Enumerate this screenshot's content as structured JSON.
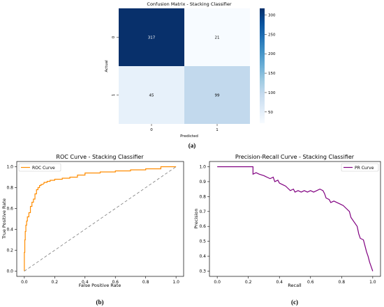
{
  "colors": {
    "roc_line": "#ff8c00",
    "pr_line": "#800080",
    "diagonal": "#7a7a7a",
    "axis": "#000000",
    "text": "#000000"
  },
  "chart_data": [
    {
      "type": "heatmap",
      "panel_label": "(a)",
      "title": "Confusion Matrix - Stacking Classifier",
      "xlabel": "Predicted",
      "ylabel": "Actual",
      "x_categories": [
        "0",
        "1"
      ],
      "y_categories": [
        "0",
        "1"
      ],
      "values": [
        [
          317,
          21
        ],
        [
          45,
          99
        ]
      ],
      "colormap": "Blues",
      "colorbar": {
        "ticks": [
          50,
          100,
          150,
          200,
          250,
          300
        ],
        "range": [
          21,
          317
        ]
      }
    },
    {
      "type": "line",
      "panel_label": "(b)",
      "title": "ROC Curve - Stacking Classifier",
      "xlabel": "False Positive Rate",
      "ylabel": "True Positive Rate",
      "xlim": [
        -0.05,
        1.05
      ],
      "ylim": [
        -0.05,
        1.05
      ],
      "xticks": [
        "0.0",
        "0.2",
        "0.4",
        "0.6",
        "0.8",
        "1.0"
      ],
      "yticks": [
        "0.0",
        "0.2",
        "0.4",
        "0.6",
        "0.8",
        "1.0"
      ],
      "legend": "top-left",
      "grid": false,
      "series": [
        {
          "name": "ROC Curve",
          "x": [
            0,
            0,
            0.003,
            0.003,
            0.006,
            0.006,
            0.01,
            0.01,
            0.015,
            0.015,
            0.02,
            0.02,
            0.03,
            0.03,
            0.04,
            0.04,
            0.05,
            0.05,
            0.06,
            0.06,
            0.07,
            0.07,
            0.08,
            0.08,
            0.09,
            0.09,
            0.1,
            0.1,
            0.11,
            0.11,
            0.12,
            0.13,
            0.13,
            0.15,
            0.15,
            0.17,
            0.17,
            0.2,
            0.2,
            0.25,
            0.25,
            0.3,
            0.3,
            0.35,
            0.35,
            0.4,
            0.4,
            0.5,
            0.5,
            0.6,
            0.6,
            0.7,
            0.7,
            0.8,
            0.8,
            0.9,
            0.9,
            1.0
          ],
          "y": [
            0,
            0.18,
            0.18,
            0.3,
            0.3,
            0.38,
            0.38,
            0.44,
            0.44,
            0.48,
            0.48,
            0.52,
            0.52,
            0.56,
            0.56,
            0.62,
            0.62,
            0.66,
            0.66,
            0.69,
            0.69,
            0.74,
            0.74,
            0.78,
            0.78,
            0.8,
            0.8,
            0.82,
            0.82,
            0.83,
            0.83,
            0.84,
            0.85,
            0.85,
            0.86,
            0.86,
            0.87,
            0.87,
            0.88,
            0.88,
            0.89,
            0.89,
            0.9,
            0.9,
            0.92,
            0.92,
            0.94,
            0.94,
            0.95,
            0.95,
            0.96,
            0.96,
            0.97,
            0.97,
            0.98,
            0.98,
            1.0,
            1.0
          ],
          "color": "#ff8c00"
        },
        {
          "name": "",
          "x": [
            0,
            1
          ],
          "y": [
            0,
            1
          ],
          "color": "#7a7a7a",
          "dashed": true
        }
      ]
    },
    {
      "type": "line",
      "panel_label": "(c)",
      "title": "Precision-Recall Curve - Stacking Classifier",
      "xlabel": "Recall",
      "ylabel": "Precision",
      "xlim": [
        -0.05,
        1.05
      ],
      "ylim": [
        0.265,
        1.035
      ],
      "xticks": [
        "0.0",
        "0.2",
        "0.4",
        "0.6",
        "0.8",
        "1.0"
      ],
      "yticks": [
        "0.3",
        "0.4",
        "0.5",
        "0.6",
        "0.7",
        "0.8",
        "0.9",
        "1.0"
      ],
      "legend": "top-right",
      "grid": false,
      "series": [
        {
          "name": "PR Curve",
          "x": [
            0,
            0.23,
            0.23,
            0.25,
            0.27,
            0.3,
            0.32,
            0.34,
            0.36,
            0.37,
            0.39,
            0.4,
            0.42,
            0.44,
            0.45,
            0.47,
            0.49,
            0.5,
            0.52,
            0.54,
            0.56,
            0.58,
            0.6,
            0.62,
            0.64,
            0.66,
            0.68,
            0.69,
            0.7,
            0.72,
            0.73,
            0.75,
            0.77,
            0.79,
            0.81,
            0.83,
            0.85,
            0.86,
            0.88,
            0.9,
            0.91,
            0.92,
            0.94,
            0.95,
            0.96,
            0.97,
            0.98,
            0.99,
            1.0
          ],
          "y": [
            1.0,
            1.0,
            0.95,
            0.96,
            0.95,
            0.94,
            0.93,
            0.92,
            0.93,
            0.9,
            0.91,
            0.89,
            0.88,
            0.87,
            0.86,
            0.84,
            0.85,
            0.83,
            0.84,
            0.83,
            0.84,
            0.83,
            0.84,
            0.83,
            0.84,
            0.85,
            0.84,
            0.82,
            0.79,
            0.78,
            0.76,
            0.77,
            0.76,
            0.75,
            0.74,
            0.72,
            0.7,
            0.66,
            0.63,
            0.6,
            0.55,
            0.52,
            0.51,
            0.47,
            0.43,
            0.4,
            0.36,
            0.33,
            0.3
          ],
          "color": "#800080"
        }
      ]
    }
  ]
}
